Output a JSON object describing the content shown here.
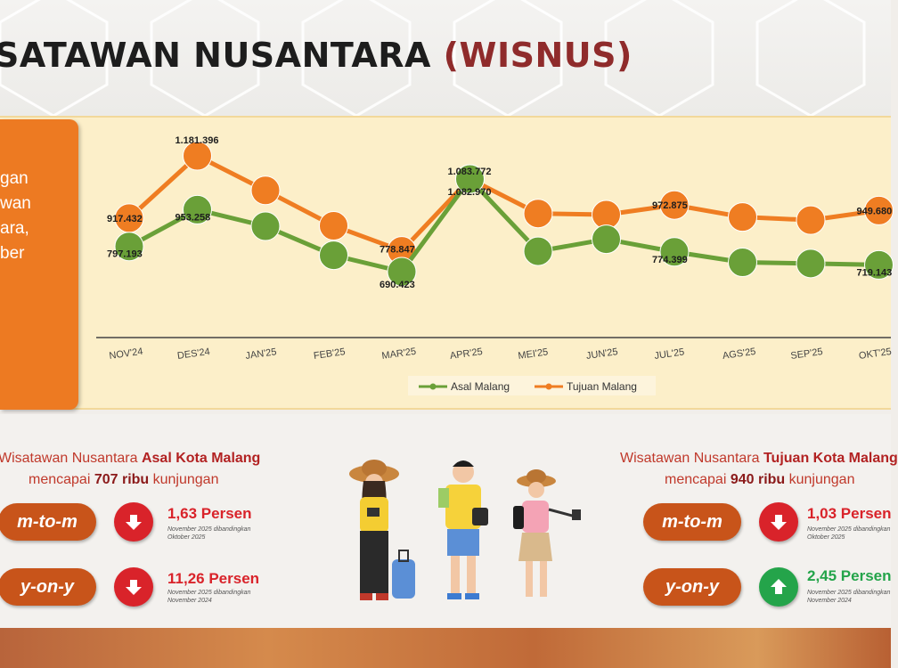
{
  "header": {
    "title_main": "SATAWAN NUSANTARA ",
    "title_accent": "(WISNUS)"
  },
  "side_text": [
    "gan",
    "wan",
    "ara,",
    "ber"
  ],
  "chart_data": {
    "type": "line",
    "categories": [
      "NOV'24",
      "DES'24",
      "JAN'25",
      "FEB'25",
      "MAR'25",
      "APR'25",
      "MEI'25",
      "JUN'25",
      "JUL'25",
      "AGS'25",
      "SEP'25",
      "OKT'25"
    ],
    "series": [
      {
        "name": "Asal Malang",
        "color": "#6aa038",
        "values": [
          797193,
          953258,
          883000,
          760000,
          690423,
          1082970,
          777000,
          828000,
          774399,
          730000,
          725000,
          719143
        ],
        "labels": [
          "797.193",
          "953.258",
          "",
          "",
          "690.423",
          "1.082.970",
          "",
          "",
          "774.399",
          "",
          "",
          "719.143"
        ]
      },
      {
        "name": "Tujuan Malang",
        "color": "#ef7d22",
        "values": [
          917432,
          1181396,
          1035000,
          885000,
          778847,
          1083772,
          937000,
          932000,
          972875,
          922000,
          909000,
          949680
        ],
        "labels": [
          "917.432",
          "1.181.396",
          "",
          "",
          "778.847",
          "1.083.772",
          "",
          "",
          "972.875",
          "",
          "",
          "949.680"
        ]
      }
    ],
    "legend_position": "bottom-center",
    "grid": false
  },
  "left_stat": {
    "head_prefix": "Wisatawan Nusantara ",
    "head_bold": "Asal Kota Malang",
    "sub_prefix": "mencapai ",
    "sub_bold": "707 ribu",
    "sub_suffix": " kunjungan",
    "mtm_label": "m-to-m",
    "mtm_pct": "1,63 Persen",
    "mtm_note1": "November 2025 dibandingkan",
    "mtm_note2": "Oktober 2025",
    "yoy_label": "y-on-y",
    "yoy_pct": "11,26 Persen",
    "yoy_note1": "November 2025 dibandingkan",
    "yoy_note2": "November 2024"
  },
  "right_stat": {
    "head_prefix": "Wisatawan Nusantara ",
    "head_bold": "Tujuan Kota Malang",
    "sub_prefix": "mencapai ",
    "sub_bold": "940 ribu",
    "sub_suffix": " kunjungan",
    "mtm_label": "m-to-m",
    "mtm_pct": "1,03 Persen",
    "mtm_note1": "November 2025 dibandingkan",
    "mtm_note2": "Oktober 2025",
    "yoy_label": "y-on-y",
    "yoy_pct": "2,45 Persen",
    "yoy_note1": "November 2025 dibandingkan",
    "yoy_note2": "November 2024"
  },
  "colors": {
    "accent_orange": "#ef7d22",
    "accent_green": "#6aa038",
    "down_red": "#d9232a",
    "up_green": "#24a44a"
  }
}
